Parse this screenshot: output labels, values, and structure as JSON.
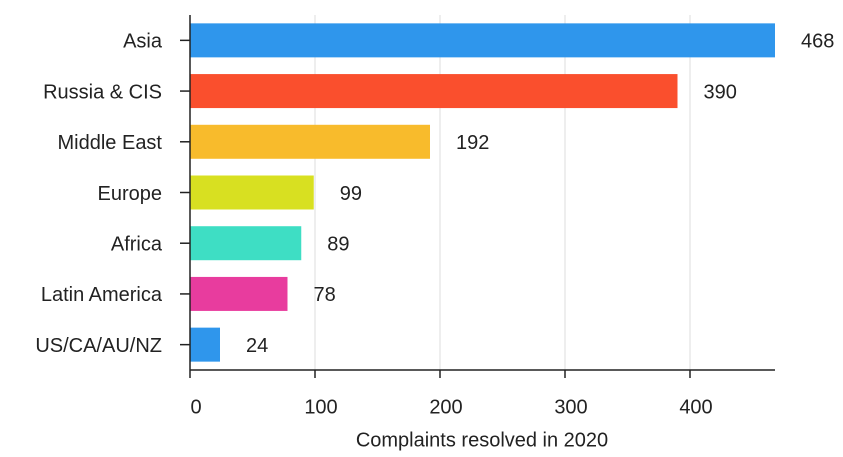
{
  "chart_data": {
    "type": "bar",
    "orientation": "horizontal",
    "categories": [
      "Asia",
      "Russia & CIS",
      "Middle East",
      "Europe",
      "Africa",
      "Latin America",
      "US/CA/AU/NZ"
    ],
    "values": [
      468,
      390,
      192,
      99,
      89,
      78,
      24
    ],
    "colors": [
      "#2f96ec",
      "#fa4f2d",
      "#f8bb2c",
      "#d8e021",
      "#3edec4",
      "#e83c9e",
      "#2f96ec"
    ],
    "xlabel": "Complaints resolved in 2020",
    "xlim": [
      0,
      468
    ],
    "xticks": [
      0,
      100,
      200,
      300,
      400
    ],
    "grid": true
  }
}
